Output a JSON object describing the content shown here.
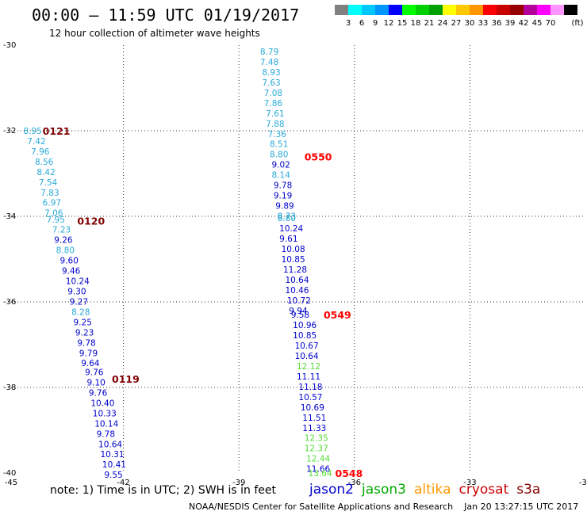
{
  "title": "00:00 – 11:59 UTC 01/19/2017",
  "subtitle": "12 hour collection of altimeter wave heights",
  "legend": {
    "unit_label": "(ft)",
    "bins": [
      {
        "color": "#808080",
        "label": ""
      },
      {
        "color": "#00ffff",
        "label": "3"
      },
      {
        "color": "#00c8ff",
        "label": "6"
      },
      {
        "color": "#0096ff",
        "label": "9"
      },
      {
        "color": "#0000ff",
        "label": "12"
      },
      {
        "color": "#00ff00",
        "label": "15"
      },
      {
        "color": "#00d000",
        "label": "18"
      },
      {
        "color": "#00a000",
        "label": "21"
      },
      {
        "color": "#ffff00",
        "label": "24"
      },
      {
        "color": "#ffc800",
        "label": "27"
      },
      {
        "color": "#ff9600",
        "label": "30"
      },
      {
        "color": "#ff0000",
        "label": "33"
      },
      {
        "color": "#c80000",
        "label": "36"
      },
      {
        "color": "#960000",
        "label": "39"
      },
      {
        "color": "#b4009b",
        "label": "42"
      },
      {
        "color": "#ff00ff",
        "label": "45"
      },
      {
        "color": "#ff96ff",
        "label": "70"
      },
      {
        "color": "#000000",
        "label": ""
      }
    ]
  },
  "note": "note: 1) Time is in UTC; 2) SWH is in feet",
  "missions": [
    {
      "name": "jason2",
      "color": "#0000cc"
    },
    {
      "name": "jason3",
      "color": "#00aa00"
    },
    {
      "name": "altika",
      "color": "#ff9900"
    },
    {
      "name": "cryosat",
      "color": "#cc0000"
    },
    {
      "name": "s3a",
      "color": "#880000"
    }
  ],
  "footer": "NOAA/NESDIS Center for Satellite Applications and Research    Jan 20 13:27:15 UTC 2017",
  "chart_data": {
    "type": "scatter",
    "xlim": [
      -45,
      -30
    ],
    "ylim": [
      -40,
      -30
    ],
    "x_ticks": [
      "-45",
      "-42",
      "-39",
      "-36",
      "-33",
      "-30"
    ],
    "y_ticks": [
      "-30",
      "-32",
      "-34",
      "-36",
      "-38",
      "-40"
    ],
    "grid": true,
    "passes": [
      {
        "time": "0121",
        "color": "#800000",
        "lon": -44.1,
        "lat": -32.0
      },
      {
        "time": "0120",
        "color": "#800000",
        "lon": -43.2,
        "lat": -34.1
      },
      {
        "time": "0119",
        "color": "#800000",
        "lon": -42.3,
        "lat": -37.8
      },
      {
        "time": "0550",
        "color": "#ff0000",
        "lon": -37.3,
        "lat": -32.6
      },
      {
        "time": "0549",
        "color": "#ff0000",
        "lon": -36.8,
        "lat": -36.3
      },
      {
        "time": "0548",
        "color": "#ff0000",
        "lon": -36.5,
        "lat": -40.0
      }
    ],
    "points": [
      {
        "v": "8.95",
        "c": "#2aaad8",
        "lon": -44.6,
        "lat": -32.0
      },
      {
        "v": "7.42",
        "c": "#2aaad8",
        "lon": -44.5,
        "lat": -32.24
      },
      {
        "v": "7.96",
        "c": "#2aaad8",
        "lon": -44.4,
        "lat": -32.48
      },
      {
        "v": "8.56",
        "c": "#2aaad8",
        "lon": -44.3,
        "lat": -32.72
      },
      {
        "v": "8.42",
        "c": "#2aaad8",
        "lon": -44.25,
        "lat": -32.96
      },
      {
        "v": "7.54",
        "c": "#2aaad8",
        "lon": -44.2,
        "lat": -33.2
      },
      {
        "v": "7.83",
        "c": "#2aaad8",
        "lon": -44.15,
        "lat": -33.44
      },
      {
        "v": "6.97",
        "c": "#2aaad8",
        "lon": -44.1,
        "lat": -33.68
      },
      {
        "v": "7.06",
        "c": "#2aaad8",
        "lon": -44.05,
        "lat": -33.92
      },
      {
        "v": "7.95",
        "c": "#2aaad8",
        "lon": -44.0,
        "lat": -34.07
      },
      {
        "v": "7.23",
        "c": "#2aaad8",
        "lon": -43.85,
        "lat": -34.31
      },
      {
        "v": "9.26",
        "c": "#0000cc",
        "lon": -43.8,
        "lat": -34.55
      },
      {
        "v": "8.80",
        "c": "#2aaad8",
        "lon": -43.75,
        "lat": -34.79
      },
      {
        "v": "9.60",
        "c": "#0000cc",
        "lon": -43.65,
        "lat": -35.03
      },
      {
        "v": "9.46",
        "c": "#0000cc",
        "lon": -43.6,
        "lat": -35.27
      },
      {
        "v": "10.24",
        "c": "#0000cc",
        "lon": -43.5,
        "lat": -35.51
      },
      {
        "v": "9.30",
        "c": "#0000cc",
        "lon": -43.45,
        "lat": -35.75
      },
      {
        "v": "9.27",
        "c": "#0000cc",
        "lon": -43.4,
        "lat": -35.99
      },
      {
        "v": "8.28",
        "c": "#2aaad8",
        "lon": -43.35,
        "lat": -36.23
      },
      {
        "v": "9.25",
        "c": "#0000cc",
        "lon": -43.3,
        "lat": -36.47
      },
      {
        "v": "9.23",
        "c": "#0000cc",
        "lon": -43.25,
        "lat": -36.71
      },
      {
        "v": "9.78",
        "c": "#0000cc",
        "lon": -43.2,
        "lat": -36.95
      },
      {
        "v": "9.79",
        "c": "#0000cc",
        "lon": -43.15,
        "lat": -37.19
      },
      {
        "v": "9.64",
        "c": "#0000cc",
        "lon": -43.1,
        "lat": -37.43
      },
      {
        "v": "9.76",
        "c": "#0000cc",
        "lon": -43.0,
        "lat": -37.64
      },
      {
        "v": "9.10",
        "c": "#0000cc",
        "lon": -42.95,
        "lat": -37.88
      },
      {
        "v": "9.76",
        "c": "#0000cc",
        "lon": -42.9,
        "lat": -38.12
      },
      {
        "v": "10.40",
        "c": "#0000cc",
        "lon": -42.85,
        "lat": -38.36
      },
      {
        "v": "10.33",
        "c": "#0000cc",
        "lon": -42.8,
        "lat": -38.6
      },
      {
        "v": "10.14",
        "c": "#0000cc",
        "lon": -42.75,
        "lat": -38.84
      },
      {
        "v": "9.78",
        "c": "#0000cc",
        "lon": -42.7,
        "lat": -39.08
      },
      {
        "v": "10.64",
        "c": "#0000cc",
        "lon": -42.65,
        "lat": -39.32
      },
      {
        "v": "10.31",
        "c": "#0000cc",
        "lon": -42.6,
        "lat": -39.56
      },
      {
        "v": "10.41",
        "c": "#0000cc",
        "lon": -42.55,
        "lat": -39.8
      },
      {
        "v": "9.55",
        "c": "#0000cc",
        "lon": -42.5,
        "lat": -40.04
      },
      {
        "v": "8.79",
        "c": "#2aaad8",
        "lon": -38.45,
        "lat": -30.15
      },
      {
        "v": "7.48",
        "c": "#2aaad8",
        "lon": -38.45,
        "lat": -30.39
      },
      {
        "v": "8.93",
        "c": "#2aaad8",
        "lon": -38.4,
        "lat": -30.63
      },
      {
        "v": "7.63",
        "c": "#2aaad8",
        "lon": -38.4,
        "lat": -30.87
      },
      {
        "v": "7.08",
        "c": "#2aaad8",
        "lon": -38.35,
        "lat": -31.11
      },
      {
        "v": "7.86",
        "c": "#2aaad8",
        "lon": -38.35,
        "lat": -31.35
      },
      {
        "v": "7.61",
        "c": "#2aaad8",
        "lon": -38.3,
        "lat": -31.59
      },
      {
        "v": "7.88",
        "c": "#2aaad8",
        "lon": -38.3,
        "lat": -31.83
      },
      {
        "v": "7.36",
        "c": "#2aaad8",
        "lon": -38.25,
        "lat": -32.07
      },
      {
        "v": "8.51",
        "c": "#2aaad8",
        "lon": -38.2,
        "lat": -32.31
      },
      {
        "v": "8.80",
        "c": "#2aaad8",
        "lon": -38.2,
        "lat": -32.55
      },
      {
        "v": "9.02",
        "c": "#0000cc",
        "lon": -38.15,
        "lat": -32.79
      },
      {
        "v": "8.14",
        "c": "#2aaad8",
        "lon": -38.15,
        "lat": -33.03
      },
      {
        "v": "9.78",
        "c": "#0000cc",
        "lon": -38.1,
        "lat": -33.27
      },
      {
        "v": "9.19",
        "c": "#0000cc",
        "lon": -38.1,
        "lat": -33.51
      },
      {
        "v": "9.89",
        "c": "#0000cc",
        "lon": -38.05,
        "lat": -33.75
      },
      {
        "v": "8.73",
        "c": "#2aaad8",
        "lon": -38.0,
        "lat": -33.99
      },
      {
        "v": "8.80",
        "c": "#2aaad8",
        "lon": -38.0,
        "lat": -34.04
      },
      {
        "v": "10.24",
        "c": "#0000cc",
        "lon": -37.95,
        "lat": -34.28
      },
      {
        "v": "9.61",
        "c": "#0000cc",
        "lon": -37.95,
        "lat": -34.52
      },
      {
        "v": "10.08",
        "c": "#0000cc",
        "lon": -37.9,
        "lat": -34.76
      },
      {
        "v": "10.85",
        "c": "#0000cc",
        "lon": -37.9,
        "lat": -35.0
      },
      {
        "v": "11.28",
        "c": "#0000cc",
        "lon": -37.85,
        "lat": -35.24
      },
      {
        "v": "10.64",
        "c": "#0000cc",
        "lon": -37.8,
        "lat": -35.48
      },
      {
        "v": "10.46",
        "c": "#0000cc",
        "lon": -37.8,
        "lat": -35.72
      },
      {
        "v": "10.72",
        "c": "#0000cc",
        "lon": -37.75,
        "lat": -35.96
      },
      {
        "v": "9.94",
        "c": "#0000cc",
        "lon": -37.7,
        "lat": -36.2
      },
      {
        "v": "9.58",
        "c": "#0000cc",
        "lon": -37.65,
        "lat": -36.3
      },
      {
        "v": "10.96",
        "c": "#0000cc",
        "lon": -37.6,
        "lat": -36.54
      },
      {
        "v": "10.85",
        "c": "#0000cc",
        "lon": -37.6,
        "lat": -36.78
      },
      {
        "v": "10.67",
        "c": "#0000cc",
        "lon": -37.55,
        "lat": -37.02
      },
      {
        "v": "10.64",
        "c": "#0000cc",
        "lon": -37.55,
        "lat": -37.26
      },
      {
        "v": "12.12",
        "c": "#55dd33",
        "lon": -37.5,
        "lat": -37.5
      },
      {
        "v": "11.11",
        "c": "#0000cc",
        "lon": -37.5,
        "lat": -37.74
      },
      {
        "v": "11.18",
        "c": "#0000cc",
        "lon": -37.45,
        "lat": -37.98
      },
      {
        "v": "10.57",
        "c": "#0000cc",
        "lon": -37.45,
        "lat": -38.22
      },
      {
        "v": "10.69",
        "c": "#0000cc",
        "lon": -37.4,
        "lat": -38.46
      },
      {
        "v": "11.51",
        "c": "#0000cc",
        "lon": -37.35,
        "lat": -38.7
      },
      {
        "v": "11.33",
        "c": "#0000cc",
        "lon": -37.35,
        "lat": -38.94
      },
      {
        "v": "12.35",
        "c": "#55dd33",
        "lon": -37.3,
        "lat": -39.18
      },
      {
        "v": "12.37",
        "c": "#55dd33",
        "lon": -37.3,
        "lat": -39.42
      },
      {
        "v": "12.44",
        "c": "#55dd33",
        "lon": -37.25,
        "lat": -39.66
      },
      {
        "v": "11.66",
        "c": "#0000cc",
        "lon": -37.25,
        "lat": -39.9
      },
      {
        "v": "13.64",
        "c": "#55dd33",
        "lon": -37.2,
        "lat": -40.0
      }
    ]
  }
}
